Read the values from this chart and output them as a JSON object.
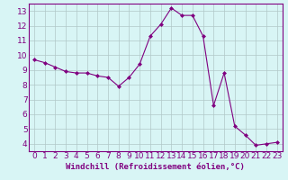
{
  "x": [
    0,
    1,
    2,
    3,
    4,
    5,
    6,
    7,
    8,
    9,
    10,
    11,
    12,
    13,
    14,
    15,
    16,
    17,
    18,
    19,
    20,
    21,
    22,
    23
  ],
  "y": [
    9.7,
    9.5,
    9.2,
    8.9,
    8.8,
    8.8,
    8.6,
    8.5,
    7.9,
    8.5,
    9.4,
    11.3,
    12.1,
    13.2,
    12.7,
    12.7,
    11.3,
    6.6,
    8.8,
    5.2,
    4.6,
    3.9,
    4.0,
    4.1
  ],
  "line_color": "#800080",
  "marker": "D",
  "marker_size": 2,
  "bg_color": "#d8f5f5",
  "grid_color": "#b0c8c8",
  "xlabel": "Windchill (Refroidissement éolien,°C)",
  "xlim": [
    -0.5,
    23.5
  ],
  "ylim": [
    3.5,
    13.5
  ],
  "yticks": [
    4,
    5,
    6,
    7,
    8,
    9,
    10,
    11,
    12,
    13
  ],
  "xticks": [
    0,
    1,
    2,
    3,
    4,
    5,
    6,
    7,
    8,
    9,
    10,
    11,
    12,
    13,
    14,
    15,
    16,
    17,
    18,
    19,
    20,
    21,
    22,
    23
  ],
  "xlabel_fontsize": 6.5,
  "tick_fontsize": 6.5,
  "tick_color": "#800080",
  "axis_color": "#800080",
  "spine_color": "#800080"
}
